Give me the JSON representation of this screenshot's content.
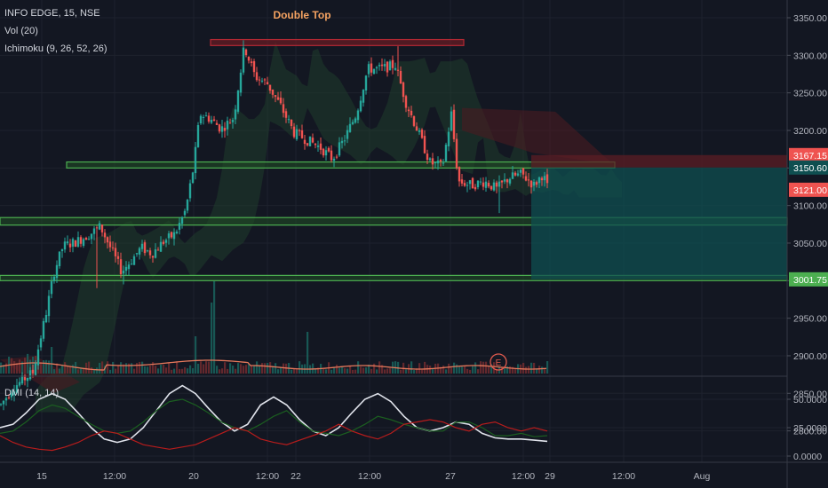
{
  "header": {
    "symbol_line": "INFO EDGE, 15, NSE",
    "volume_label": "Vol (20)",
    "ichimoku_label": "Ichimoku (9, 26, 52, 26)",
    "dmi_label": "DMI (14, 14)"
  },
  "colors": {
    "background": "#131722",
    "grid": "#1e222d",
    "up_candle": "#26a69a",
    "down_candle": "#ef5350",
    "zone_green": "#4caf50",
    "zone_red": "#b22833",
    "target_fill": "#0f4f50",
    "stop_fill": "#5c1d24",
    "dmi_white": "#e0e3eb",
    "dmi_green": "#1b5e20",
    "dmi_red": "#b71c1c",
    "volume_ma": "#e5785b",
    "annotation": "#f4a261"
  },
  "chart_data": [
    {
      "type": "candlestick",
      "title": "INFO EDGE, 15, NSE",
      "ylim": [
        2760,
        3370
      ],
      "y_ticks": [
        "3350.00",
        "3300.00",
        "3250.00",
        "3200.00",
        "3150.00",
        "3100.00",
        "3050.00",
        "3000.00",
        "2950.00",
        "2900.00",
        "2850.00",
        "2800.00"
      ],
      "x_ticks": [
        "15",
        "12:00",
        "20",
        "12:00",
        "22",
        "12:00",
        "27",
        "12:00",
        "29",
        "12:00",
        "Aug"
      ],
      "price_badges": [
        {
          "label": "3167.15",
          "value": 3167.15,
          "color": "#ef5350"
        },
        {
          "label": "3150.60",
          "value": 3150.6,
          "color": "#0f4f50"
        },
        {
          "label": "3121.00",
          "value": 3121.0,
          "color": "#ef5350"
        },
        {
          "label": "3001.75",
          "value": 3001.75,
          "color": "#4caf50"
        }
      ],
      "annotations": [
        {
          "text": "Double Top",
          "type": "label"
        },
        {
          "text": "E",
          "type": "earnings-marker"
        }
      ],
      "horizontal_zones": [
        {
          "name": "double-top",
          "from": 3313,
          "to": 3321,
          "color": "red"
        },
        {
          "name": "resistance",
          "from": 3150,
          "to": 3158,
          "color": "green"
        },
        {
          "name": "support-1",
          "from": 3074,
          "to": 3084,
          "color": "green"
        },
        {
          "name": "support-2",
          "from": 3000,
          "to": 3007,
          "color": "green"
        }
      ],
      "position": {
        "entry": 3150.6,
        "stop": 3167.15,
        "target": 3001.75
      },
      "price_path": [
        {
          "t": 0,
          "p": 2835
        },
        {
          "t": 14,
          "p": 2858
        },
        {
          "t": 36,
          "p": 2878
        },
        {
          "t": 50,
          "p": 2952
        },
        {
          "t": 60,
          "p": 3012
        },
        {
          "t": 70,
          "p": 3046
        },
        {
          "t": 85,
          "p": 3052
        },
        {
          "t": 100,
          "p": 3062
        },
        {
          "t": 112,
          "p": 3072
        },
        {
          "t": 124,
          "p": 3042
        },
        {
          "t": 136,
          "p": 3012
        },
        {
          "t": 146,
          "p": 3026
        },
        {
          "t": 158,
          "p": 3044
        },
        {
          "t": 170,
          "p": 3036
        },
        {
          "t": 183,
          "p": 3052
        },
        {
          "t": 196,
          "p": 3062
        },
        {
          "t": 208,
          "p": 3094
        },
        {
          "t": 217,
          "p": 3152
        },
        {
          "t": 224,
          "p": 3222
        },
        {
          "t": 235,
          "p": 3216
        },
        {
          "t": 248,
          "p": 3202
        },
        {
          "t": 262,
          "p": 3217
        },
        {
          "t": 274,
          "p": 3312
        },
        {
          "t": 286,
          "p": 3272
        },
        {
          "t": 300,
          "p": 3262
        },
        {
          "t": 315,
          "p": 3232
        },
        {
          "t": 330,
          "p": 3197
        },
        {
          "t": 345,
          "p": 3187
        },
        {
          "t": 360,
          "p": 3177
        },
        {
          "t": 373,
          "p": 3162
        },
        {
          "t": 386,
          "p": 3187
        },
        {
          "t": 400,
          "p": 3222
        },
        {
          "t": 413,
          "p": 3282
        },
        {
          "t": 428,
          "p": 3282
        },
        {
          "t": 444,
          "p": 3287
        },
        {
          "t": 456,
          "p": 3237
        },
        {
          "t": 470,
          "p": 3197
        },
        {
          "t": 483,
          "p": 3157
        },
        {
          "t": 497,
          "p": 3152
        },
        {
          "t": 507,
          "p": 3222
        },
        {
          "t": 515,
          "p": 3132
        },
        {
          "t": 530,
          "p": 3127
        },
        {
          "t": 545,
          "p": 3132
        },
        {
          "t": 558,
          "p": 3122
        },
        {
          "t": 572,
          "p": 3137
        },
        {
          "t": 586,
          "p": 3142
        },
        {
          "t": 600,
          "p": 3127
        },
        {
          "t": 610,
          "p": 3142
        },
        {
          "t": 616,
          "p": 3121
        }
      ]
    },
    {
      "type": "bar",
      "title": "Vol (20)",
      "series": [
        {
          "name": "Volume"
        }
      ]
    },
    {
      "type": "line",
      "title": "DMI (14, 14)",
      "ylim": [
        0,
        62
      ],
      "y_ticks": [
        "50.0000",
        "25.0000",
        "0.0000"
      ],
      "series": [
        {
          "color": "#e0e3eb",
          "values": [
            25,
            28,
            38,
            50,
            55,
            50,
            38,
            25,
            15,
            12,
            15,
            25,
            40,
            55,
            62,
            55,
            42,
            30,
            22,
            28,
            45,
            52,
            45,
            32,
            22,
            18,
            25,
            38,
            50,
            55,
            48,
            35,
            25,
            22,
            25,
            30,
            28,
            20,
            16,
            15,
            15,
            14,
            13
          ]
        },
        {
          "color": "#1b5e20",
          "values": [
            20,
            22,
            30,
            40,
            45,
            42,
            35,
            28,
            22,
            20,
            22,
            30,
            40,
            48,
            50,
            45,
            38,
            30,
            25,
            22,
            28,
            35,
            40,
            30,
            22,
            20,
            18,
            22,
            28,
            35,
            32,
            28,
            25,
            22,
            22,
            30,
            30,
            25,
            18,
            18,
            20,
            17,
            18
          ]
        },
        {
          "color": "#b71c1c",
          "values": [
            18,
            12,
            8,
            6,
            5,
            8,
            12,
            18,
            22,
            20,
            15,
            10,
            8,
            6,
            8,
            10,
            15,
            20,
            25,
            22,
            15,
            12,
            10,
            14,
            18,
            22,
            28,
            22,
            18,
            15,
            20,
            28,
            30,
            32,
            30,
            25,
            22,
            28,
            30,
            25,
            22,
            25,
            22
          ]
        }
      ]
    }
  ]
}
